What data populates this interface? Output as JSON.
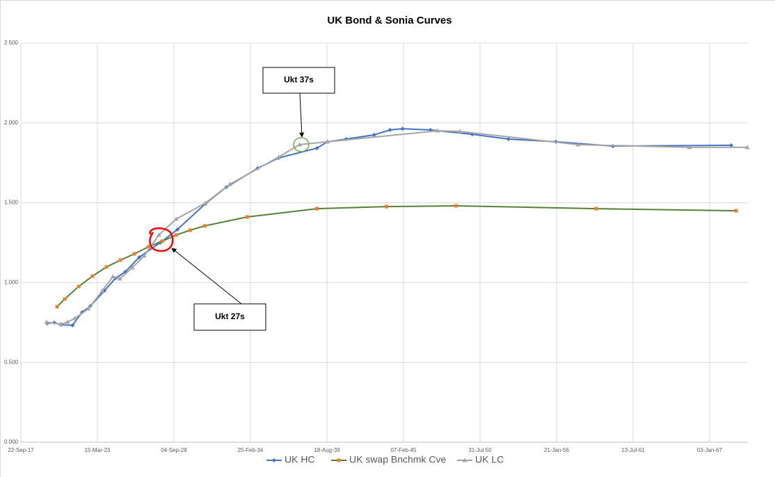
{
  "chart_data": {
    "type": "line",
    "title": "UK Bond & Sonia Curves",
    "xlim": [
      2017.73,
      2069.74
    ],
    "xticks": [
      {
        "value": 2017.73,
        "label": "22-Sep-17"
      },
      {
        "value": 2023.2,
        "label": "15-Mar-23"
      },
      {
        "value": 2028.68,
        "label": "04-Sep-28"
      },
      {
        "value": 2034.15,
        "label": "25-Feb-34"
      },
      {
        "value": 2039.63,
        "label": "18-Aug-39"
      },
      {
        "value": 2045.1,
        "label": "07-Feb-45"
      },
      {
        "value": 2050.58,
        "label": "31-Jul-50"
      },
      {
        "value": 2056.05,
        "label": "21-Jan-56"
      },
      {
        "value": 2061.53,
        "label": "13-Jul-61"
      },
      {
        "value": 2067.0,
        "label": "03-Jan-67"
      }
    ],
    "ylim": [
      0,
      2.5
    ],
    "yticks": [
      {
        "value": 0,
        "label": "0.000"
      },
      {
        "value": 0.5,
        "label": "0.500"
      },
      {
        "value": 1,
        "label": "1.000"
      },
      {
        "value": 1.5,
        "label": "1.500"
      },
      {
        "value": 2,
        "label": "2.000"
      },
      {
        "value": 2.5,
        "label": "2.500"
      }
    ],
    "grid": true,
    "legend": "bottom",
    "series": [
      {
        "name": "UK HC",
        "color": "#4472c4",
        "marker_color": "#4472c4",
        "marker": "diamond",
        "x": [
          2019.62,
          2020.12,
          2020.62,
          2021.42,
          2022.11,
          2022.71,
          2023.71,
          2024.51,
          2025.2,
          2026.2,
          2027.7,
          2028.94,
          2030.93,
          2032.43,
          2034.67,
          2036.17,
          2038.91,
          2039.66,
          2041.0,
          2043.0,
          2044.14,
          2045.04,
          2047.03,
          2050.02,
          2052.61,
          2056.0,
          2060.08,
          2068.55
        ],
        "values": [
          0.745,
          0.749,
          0.736,
          0.732,
          0.814,
          0.854,
          0.949,
          1.028,
          1.067,
          1.159,
          1.25,
          1.333,
          1.494,
          1.598,
          1.716,
          1.781,
          1.842,
          1.882,
          1.899,
          1.925,
          1.956,
          1.964,
          1.956,
          1.929,
          1.899,
          1.882,
          1.855,
          1.86
        ]
      },
      {
        "name": "UK swap Bnchmk Cve",
        "color": "#548235",
        "marker_color": "#ed7d31",
        "marker": "square",
        "x": [
          2020.32,
          2020.87,
          2021.87,
          2022.86,
          2023.86,
          2024.86,
          2025.85,
          2026.85,
          2027.84,
          2028.84,
          2029.84,
          2030.88,
          2033.92,
          2038.91,
          2043.89,
          2048.87,
          2058.89,
          2068.9
        ],
        "values": [
          0.849,
          0.897,
          0.976,
          1.041,
          1.098,
          1.141,
          1.18,
          1.224,
          1.259,
          1.298,
          1.328,
          1.355,
          1.411,
          1.463,
          1.476,
          1.481,
          1.463,
          1.45
        ]
      },
      {
        "name": "UK LC",
        "color": "#a5a5a5",
        "marker_color": "#a5a5a5",
        "marker": "triangle",
        "x": [
          2019.57,
          2020.57,
          2021.07,
          2021.57,
          2022.56,
          2023.56,
          2024.31,
          2024.81,
          2025.7,
          2026.55,
          2027.6,
          2028.84,
          2030.93,
          2032.68,
          2036.17,
          2037.66,
          2039.66,
          2047.53,
          2049.12,
          2057.59,
          2065.56,
          2069.7
        ],
        "values": [
          0.753,
          0.74,
          0.753,
          0.775,
          0.836,
          0.949,
          1.037,
          1.024,
          1.093,
          1.167,
          1.298,
          1.398,
          1.498,
          1.616,
          1.786,
          1.864,
          1.882,
          1.951,
          1.947,
          1.864,
          1.847,
          1.847
        ]
      }
    ],
    "annotations": [
      {
        "text": "Ukt 37s"
      },
      {
        "text": "Ukt 27s"
      }
    ]
  }
}
